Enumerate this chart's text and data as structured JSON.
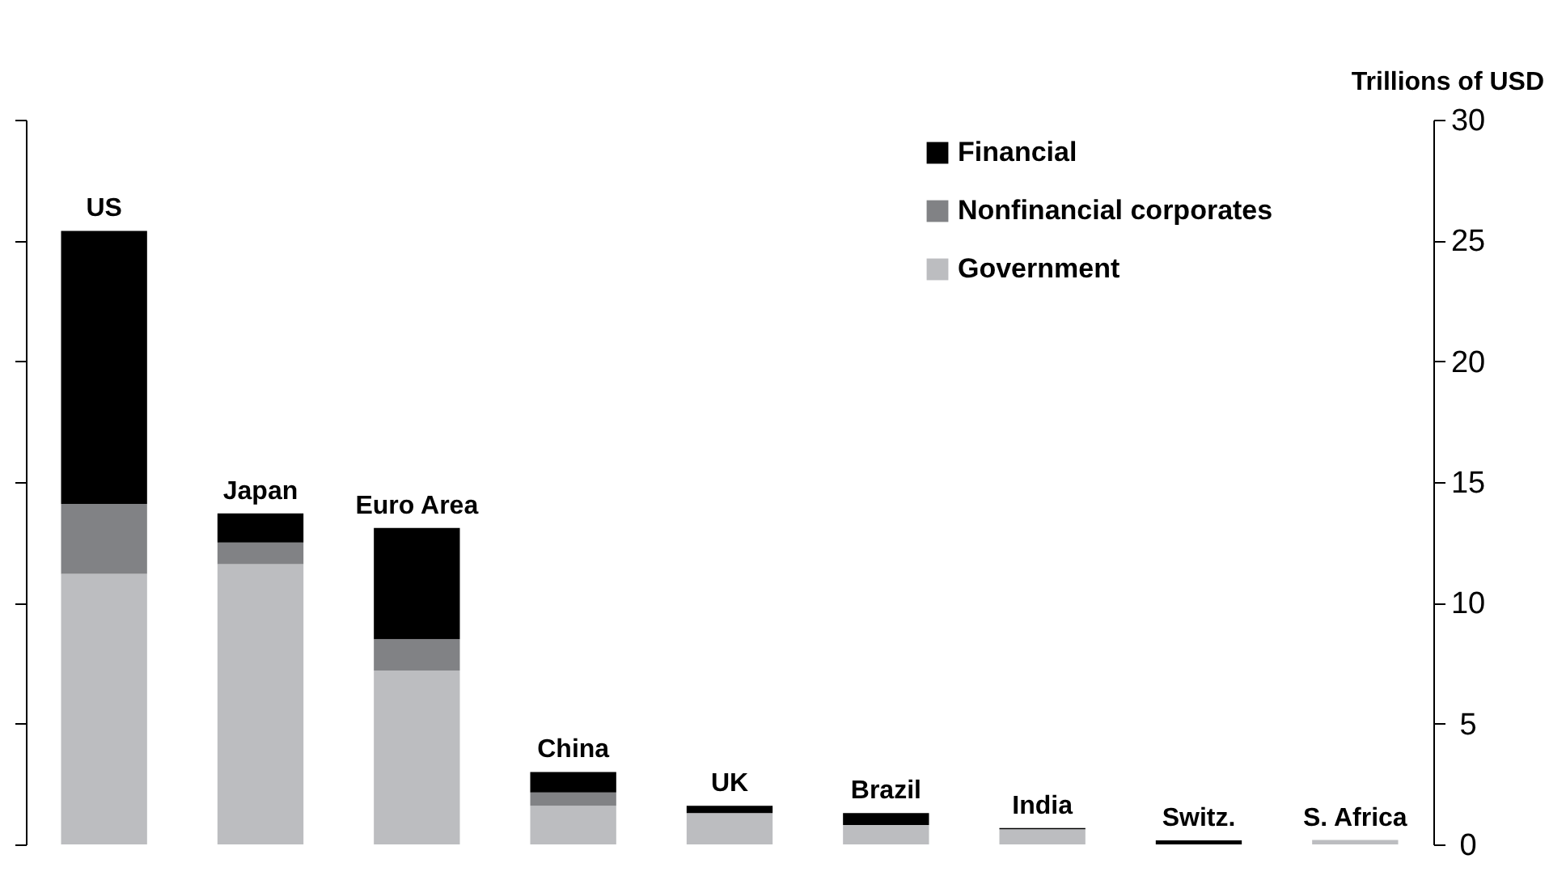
{
  "chart_data": {
    "type": "bar",
    "stacked": true,
    "ylabel": "Trillions of USD",
    "categories": [
      "US",
      "Japan",
      "Euro Area",
      "China",
      "UK",
      "Brazil",
      "India",
      "Switz.",
      "S. Africa"
    ],
    "series": [
      {
        "name": "Government",
        "color": "#bcbdc0",
        "values": [
          11.2,
          11.6,
          7.2,
          1.6,
          1.3,
          0.8,
          0.63,
          null,
          0.18
        ]
      },
      {
        "name": "Nonfinancial corporates",
        "color": "#818285",
        "values": [
          2.9,
          0.9,
          1.3,
          0.55,
          0,
          0,
          0,
          0,
          0
        ]
      },
      {
        "name": "Financial",
        "color": "#000000",
        "values": [
          11.3,
          1.2,
          4.6,
          0.85,
          0.3,
          0.5,
          0.05,
          0.17,
          0
        ]
      }
    ],
    "ylim": [
      0,
      30
    ],
    "yticks": [
      0,
      5,
      10,
      15,
      20,
      25,
      30
    ],
    "legend": "top right",
    "grid": false
  }
}
